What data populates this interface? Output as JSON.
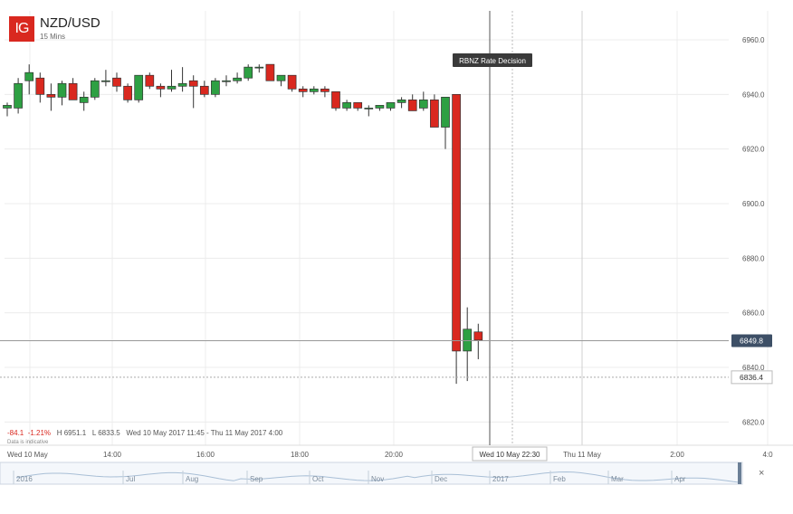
{
  "header": {
    "logo_text": "IG",
    "pair": "NZD/USD",
    "interval": "15 Mins"
  },
  "stats": {
    "change": "-84.1",
    "change_pct": "-1.21%",
    "high": "H 6951.1",
    "low": "L 6833.5",
    "range": "Wed 10 May 2017 11:45 - Thu 11 May 2017 4:00",
    "disclaimer": "Data is indicative"
  },
  "annotation": "RBNZ Rate Decision",
  "price_badges": {
    "last": "6849.8",
    "other": "6836.4"
  },
  "navigator": {
    "labels": [
      "2016",
      "Jul",
      "Aug",
      "Sep",
      "Oct",
      "Nov",
      "Dec",
      "2017",
      "Feb",
      "Mar",
      "Apr"
    ],
    "close_label": "×"
  },
  "colors": {
    "up": "#2ea043",
    "down": "#d9281f",
    "badge": "#3d4f66",
    "grid": "#ececec"
  },
  "chart_data": {
    "type": "candlestick",
    "title": "NZD/USD",
    "ylim": [
      6815,
      6965
    ],
    "y_ticks": [
      6820.0,
      6840.0,
      6860.0,
      6880.0,
      6900.0,
      6920.0,
      6940.0,
      6960.0
    ],
    "x_labels": [
      "Wed 10 May",
      "14:00",
      "16:00",
      "18:00",
      "20:00",
      "Wed 10 May 22:30",
      "Thu 11 May",
      "2:00",
      "4:0"
    ],
    "grid": true,
    "series": [
      {
        "candles": [
          {
            "o": 6935,
            "h": 6937,
            "l": 6932,
            "c": 6936
          },
          {
            "o": 6935,
            "h": 6946,
            "l": 6933,
            "c": 6944
          },
          {
            "o": 6945,
            "h": 6951,
            "l": 6940,
            "c": 6948
          },
          {
            "o": 6946,
            "h": 6948,
            "l": 6937,
            "c": 6940
          },
          {
            "o": 6940,
            "h": 6944,
            "l": 6934,
            "c": 6939
          },
          {
            "o": 6939,
            "h": 6945,
            "l": 6936,
            "c": 6944
          },
          {
            "o": 6944,
            "h": 6946,
            "l": 6938,
            "c": 6938
          },
          {
            "o": 6937,
            "h": 6941,
            "l": 6934,
            "c": 6939
          },
          {
            "o": 6939,
            "h": 6946,
            "l": 6938,
            "c": 6945
          },
          {
            "o": 6945,
            "h": 6949,
            "l": 6943,
            "c": 6945
          },
          {
            "o": 6946,
            "h": 6948,
            "l": 6941,
            "c": 6943
          },
          {
            "o": 6943,
            "h": 6944,
            "l": 6937,
            "c": 6938
          },
          {
            "o": 6938,
            "h": 6947,
            "l": 6937,
            "c": 6947
          },
          {
            "o": 6947,
            "h": 6948,
            "l": 6942,
            "c": 6943
          },
          {
            "o": 6943,
            "h": 6944,
            "l": 6939,
            "c": 6942
          },
          {
            "o": 6942,
            "h": 6949,
            "l": 6941,
            "c": 6943
          },
          {
            "o": 6943,
            "h": 6950,
            "l": 6941,
            "c": 6944
          },
          {
            "o": 6945,
            "h": 6947,
            "l": 6935,
            "c": 6943
          },
          {
            "o": 6943,
            "h": 6945,
            "l": 6939,
            "c": 6940
          },
          {
            "o": 6940,
            "h": 6946,
            "l": 6939,
            "c": 6945
          },
          {
            "o": 6945,
            "h": 6947,
            "l": 6943,
            "c": 6945
          },
          {
            "o": 6945,
            "h": 6948,
            "l": 6944,
            "c": 6946
          },
          {
            "o": 6946,
            "h": 6951,
            "l": 6945,
            "c": 6950
          },
          {
            "o": 6950,
            "h": 6951,
            "l": 6948,
            "c": 6950
          },
          {
            "o": 6951,
            "h": 6951,
            "l": 6945,
            "c": 6945
          },
          {
            "o": 6945,
            "h": 6947,
            "l": 6943,
            "c": 6947
          },
          {
            "o": 6947,
            "h": 6947,
            "l": 6941,
            "c": 6942
          },
          {
            "o": 6942,
            "h": 6943,
            "l": 6939,
            "c": 6941
          },
          {
            "o": 6941,
            "h": 6943,
            "l": 6940,
            "c": 6942
          },
          {
            "o": 6942,
            "h": 6943,
            "l": 6939,
            "c": 6941
          },
          {
            "o": 6941,
            "h": 6941,
            "l": 6934,
            "c": 6935
          },
          {
            "o": 6935,
            "h": 6938,
            "l": 6934,
            "c": 6937
          },
          {
            "o": 6937,
            "h": 6937,
            "l": 6934,
            "c": 6935
          },
          {
            "o": 6935,
            "h": 6936,
            "l": 6932,
            "c": 6935
          },
          {
            "o": 6935,
            "h": 6936,
            "l": 6934,
            "c": 6936
          },
          {
            "o": 6935,
            "h": 6937,
            "l": 6934,
            "c": 6937
          },
          {
            "o": 6937,
            "h": 6939,
            "l": 6935,
            "c": 6938
          },
          {
            "o": 6938,
            "h": 6940,
            "l": 6934,
            "c": 6934
          },
          {
            "o": 6935,
            "h": 6941,
            "l": 6934,
            "c": 6938
          },
          {
            "o": 6938,
            "h": 6940,
            "l": 6928,
            "c": 6928
          },
          {
            "o": 6928,
            "h": 6939,
            "l": 6920,
            "c": 6939
          },
          {
            "o": 6940,
            "h": 6940,
            "l": 6834,
            "c": 6846
          },
          {
            "o": 6846,
            "h": 6862,
            "l": 6835,
            "c": 6854
          },
          {
            "o": 6853,
            "h": 6856,
            "l": 6843,
            "c": 6850
          }
        ]
      }
    ]
  }
}
